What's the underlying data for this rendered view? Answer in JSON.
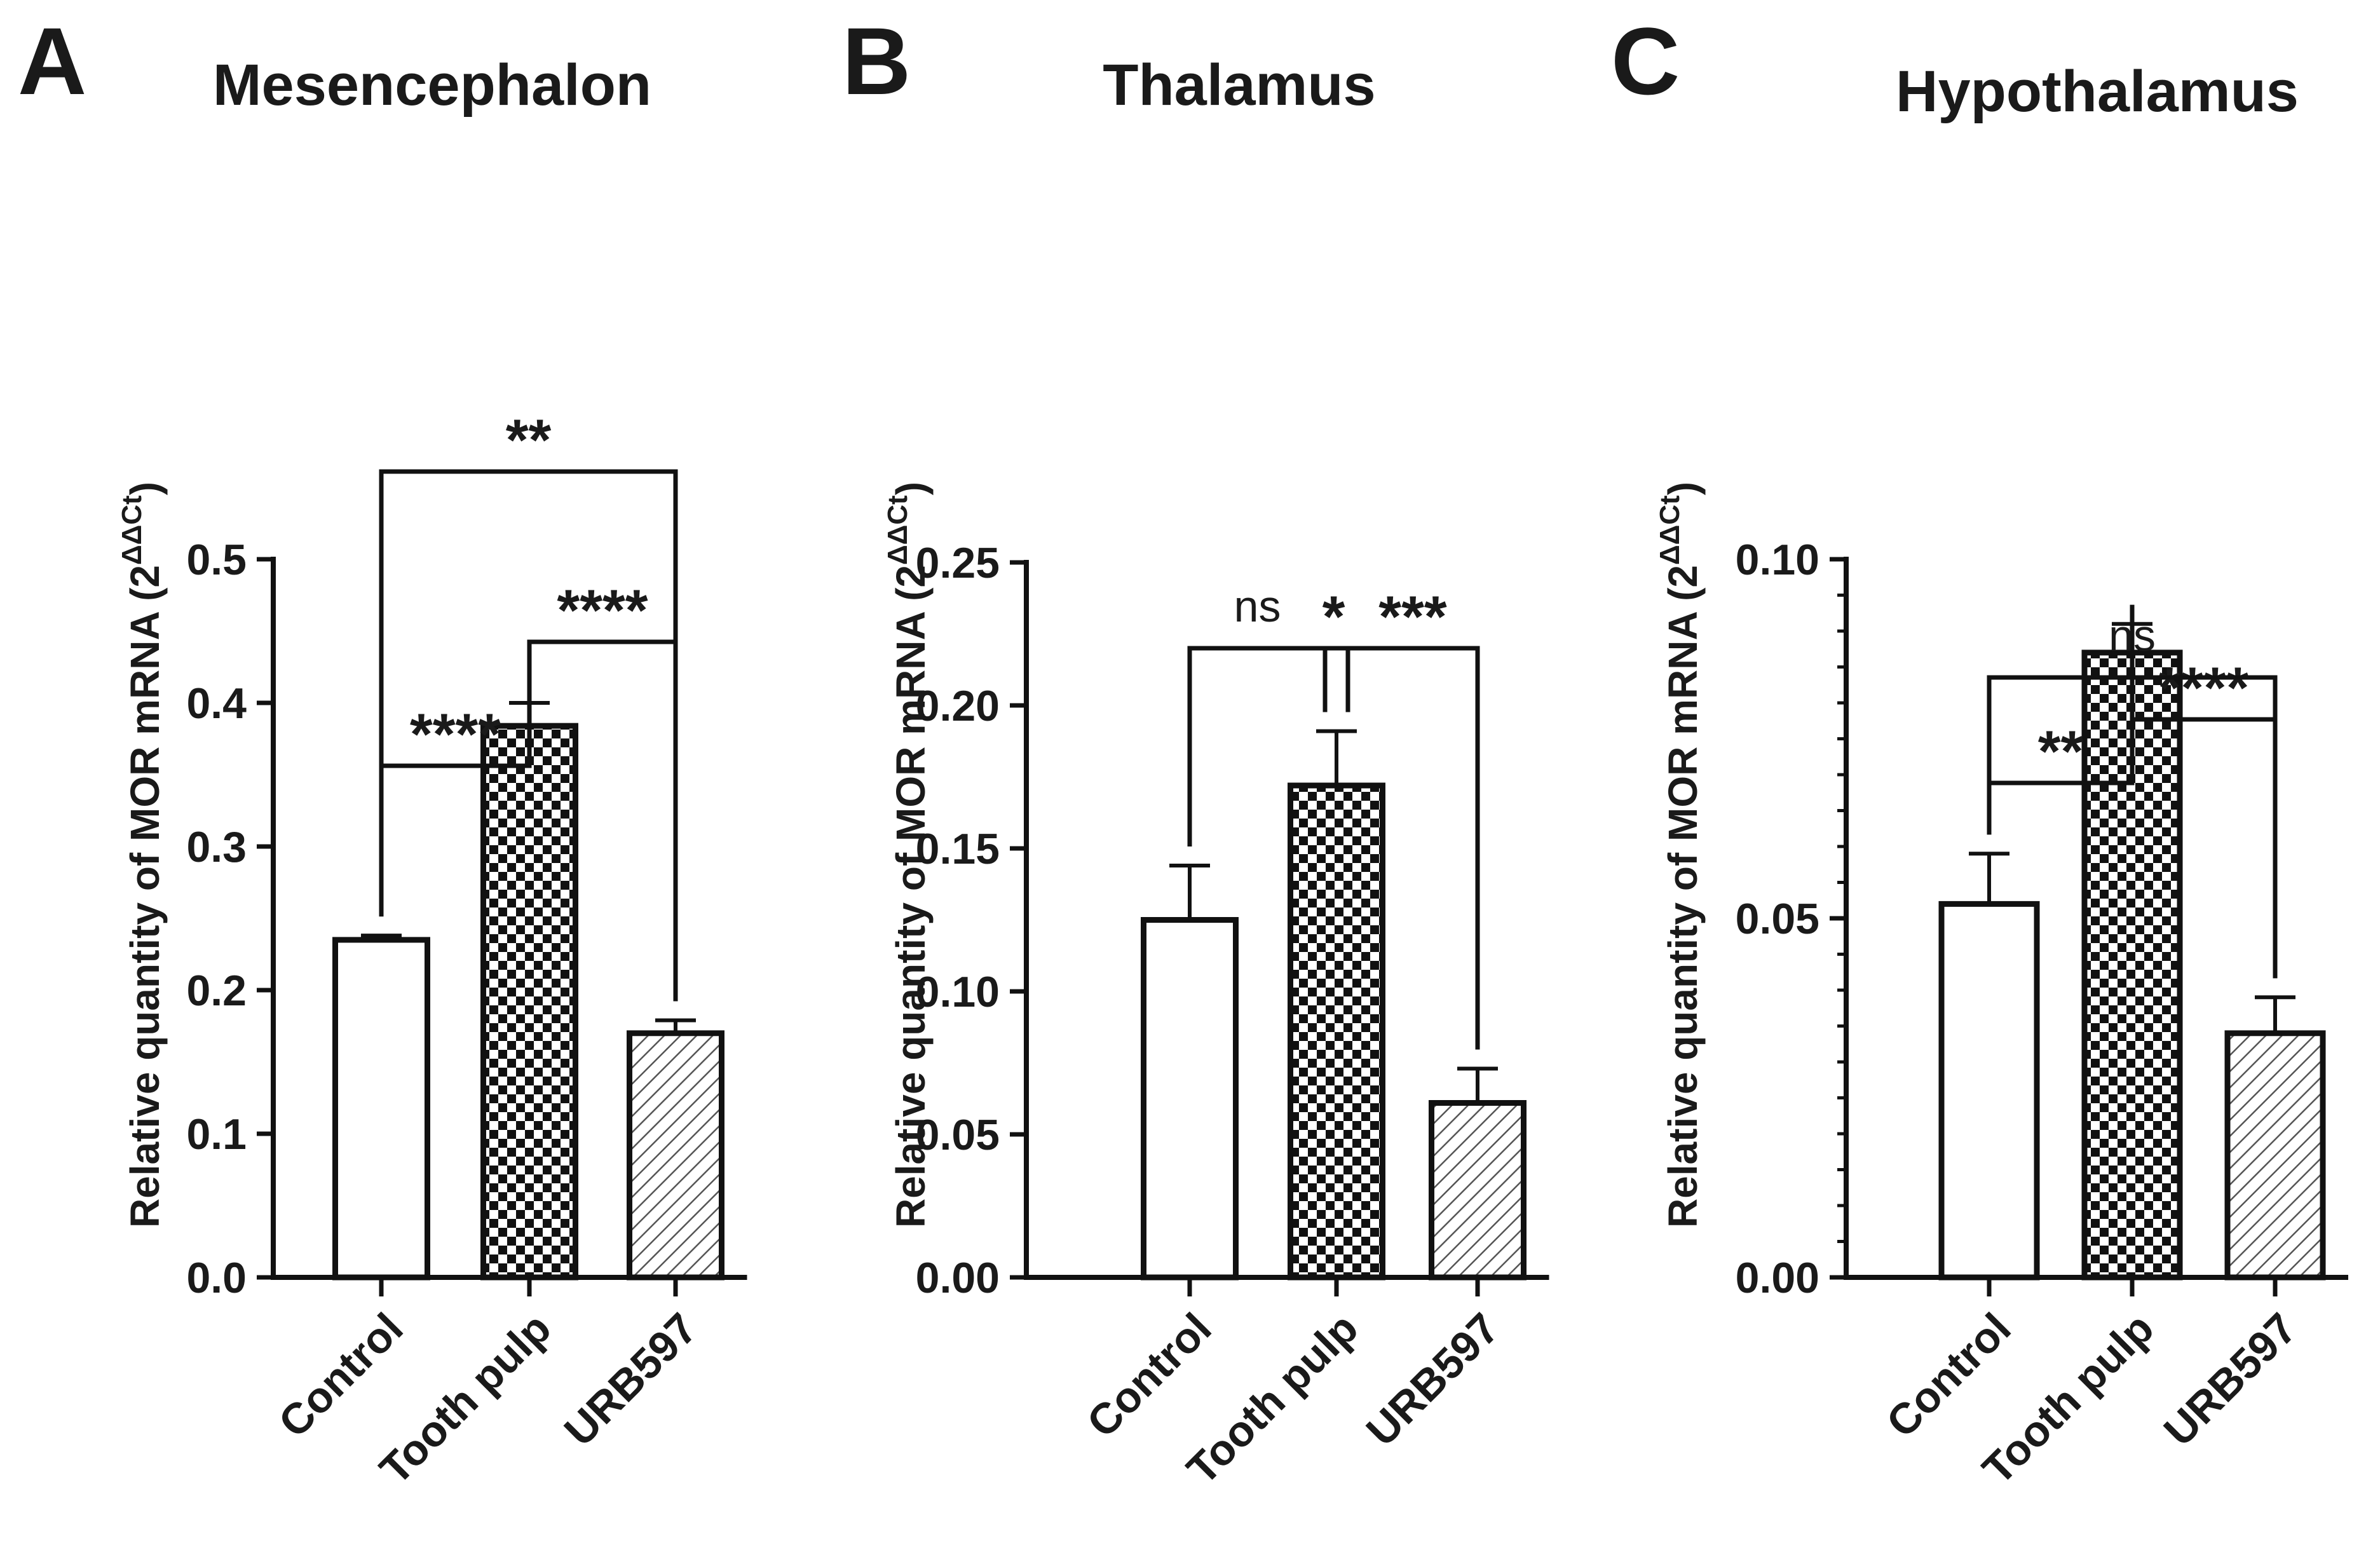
{
  "chart_data": [
    {
      "type": "bar",
      "panel_letter": "A",
      "title": "Mesencephalon",
      "ylabel": "Relative quantity of MOR mRNA (2",
      "ylabel_superscript": "ΔΔCt",
      "ylabel_close": ")",
      "categories": [
        "Control",
        "Tooth pulp",
        "URB597"
      ],
      "values": [
        0.235,
        0.384,
        0.17
      ],
      "errors": [
        0.003,
        0.016,
        0.009
      ],
      "patterns": [
        "white",
        "checker",
        "hatch"
      ],
      "ylim": [
        0,
        0.5
      ],
      "yticks": [
        0.0,
        0.1,
        0.2,
        0.3,
        0.4,
        0.5
      ],
      "ytick_labels": [
        "0.0",
        "0.1",
        "0.2",
        "0.3",
        "0.4",
        "0.5"
      ],
      "minor_ticks_per_major": 0,
      "significance": [
        {
          "from": 0,
          "to": 1,
          "label": "****",
          "level": 1
        },
        {
          "from": 1,
          "to": 2,
          "label": "****",
          "level": 2
        },
        {
          "from": 0,
          "to": 2,
          "label": "**",
          "level": 3
        }
      ]
    },
    {
      "type": "bar",
      "panel_letter": "B",
      "title": "Thalamus",
      "ylabel": "Relative quantity of MOR mRNA (2",
      "ylabel_superscript": "ΔΔCt",
      "ylabel_close": ")",
      "categories": [
        "Control",
        "Tooth pulp",
        "URB597"
      ],
      "values": [
        0.125,
        0.172,
        0.061
      ],
      "errors": [
        0.019,
        0.019,
        0.012
      ],
      "patterns": [
        "white",
        "checker",
        "hatch"
      ],
      "ylim": [
        0,
        0.25
      ],
      "yticks": [
        0.0,
        0.05,
        0.1,
        0.15,
        0.2,
        0.25
      ],
      "ytick_labels": [
        "0.00",
        "0.05",
        "0.10",
        "0.15",
        "0.20",
        "0.25"
      ],
      "minor_ticks_per_major": 0,
      "significance": [
        {
          "from": 0,
          "to": 1,
          "label": "ns",
          "level": 1
        },
        {
          "from": 1,
          "to": 2,
          "label": "***",
          "level": 1
        },
        {
          "from": 0,
          "to": 2,
          "label": "*",
          "level": 2
        }
      ]
    },
    {
      "type": "bar",
      "panel_letter": "C",
      "title": "Hypothalamus",
      "ylabel": "Relative quantity of MOR mRNA (2",
      "ylabel_superscript": "ΔΔCt",
      "ylabel_close": ")",
      "categories": [
        "Control",
        "Tooth pulp",
        "URB597"
      ],
      "values": [
        0.052,
        0.087,
        0.034
      ],
      "errors": [
        0.007,
        0.004,
        0.005
      ],
      "patterns": [
        "white",
        "checker",
        "hatch"
      ],
      "ylim": [
        0,
        0.1
      ],
      "yticks": [
        0.0,
        0.05,
        0.1
      ],
      "ytick_labels": [
        "0.00",
        "0.05",
        "0.10"
      ],
      "minor_ticks_per_major": 9,
      "significance": [
        {
          "from": 0,
          "to": 1,
          "label": "**",
          "level": 1
        },
        {
          "from": 1,
          "to": 2,
          "label": "****",
          "level": 2
        },
        {
          "from": 0,
          "to": 2,
          "label": "ns",
          "level": 3
        }
      ]
    }
  ]
}
